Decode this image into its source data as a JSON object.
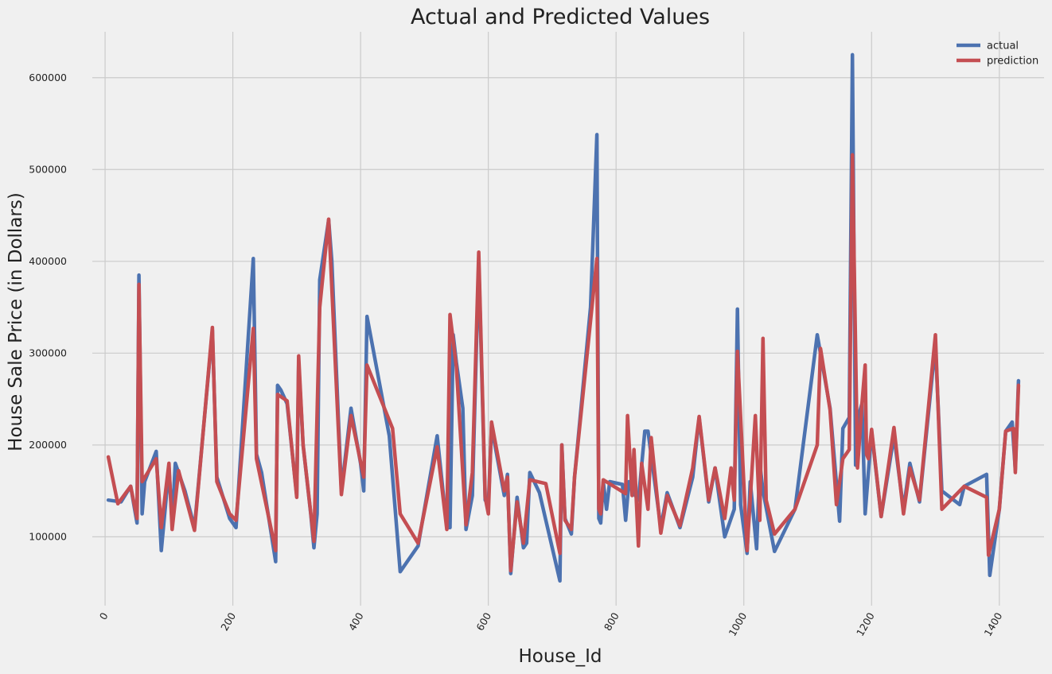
{
  "chart_data": {
    "type": "line",
    "title": "Actual and Predicted Values",
    "xlabel": "House_Id",
    "ylabel": "House Sale Price (in Dollars)",
    "xlim": [
      -20,
      1470
    ],
    "ylim": [
      25000,
      650000
    ],
    "xticks": [
      0,
      200,
      400,
      600,
      800,
      1000,
      1200,
      1400
    ],
    "yticks": [
      100000,
      200000,
      300000,
      400000,
      500000,
      600000
    ],
    "grid": true,
    "legend": "top-right",
    "series": [
      {
        "name": "actual",
        "color": "#4c72b0",
        "points": [
          [
            5,
            140000
          ],
          [
            15,
            139000
          ],
          [
            25,
            138000
          ],
          [
            40,
            155000
          ],
          [
            50,
            115000
          ],
          [
            53,
            385000
          ],
          [
            58,
            125000
          ],
          [
            62,
            160000
          ],
          [
            80,
            193000
          ],
          [
            88,
            85000
          ],
          [
            100,
            175000
          ],
          [
            105,
            115000
          ],
          [
            110,
            180000
          ],
          [
            125,
            150000
          ],
          [
            140,
            110000
          ],
          [
            168,
            325000
          ],
          [
            175,
            165000
          ],
          [
            195,
            120000
          ],
          [
            205,
            110000
          ],
          [
            232,
            403000
          ],
          [
            237,
            190000
          ],
          [
            245,
            170000
          ],
          [
            267,
            73000
          ],
          [
            270,
            265000
          ],
          [
            275,
            260000
          ],
          [
            285,
            245000
          ],
          [
            300,
            145000
          ],
          [
            303,
            290000
          ],
          [
            310,
            200000
          ],
          [
            322,
            125000
          ],
          [
            327,
            88000
          ],
          [
            332,
            125000
          ],
          [
            336,
            380000
          ],
          [
            350,
            445000
          ],
          [
            355,
            400000
          ],
          [
            370,
            150000
          ],
          [
            385,
            240000
          ],
          [
            400,
            180000
          ],
          [
            405,
            150000
          ],
          [
            410,
            340000
          ],
          [
            445,
            210000
          ],
          [
            462,
            62000
          ],
          [
            490,
            90000
          ],
          [
            520,
            210000
          ],
          [
            535,
            110000
          ],
          [
            540,
            110000
          ],
          [
            545,
            320000
          ],
          [
            550,
            290000
          ],
          [
            560,
            240000
          ],
          [
            565,
            108000
          ],
          [
            575,
            145000
          ],
          [
            585,
            400000
          ],
          [
            595,
            140000
          ],
          [
            600,
            135000
          ],
          [
            605,
            220000
          ],
          [
            625,
            145000
          ],
          [
            630,
            168000
          ],
          [
            635,
            60000
          ],
          [
            645,
            143000
          ],
          [
            655,
            88000
          ],
          [
            660,
            93000
          ],
          [
            665,
            170000
          ],
          [
            680,
            148000
          ],
          [
            712,
            52000
          ],
          [
            715,
            200000
          ],
          [
            720,
            120000
          ],
          [
            730,
            103000
          ],
          [
            735,
            165000
          ],
          [
            760,
            350000
          ],
          [
            770,
            538000
          ],
          [
            773,
            120000
          ],
          [
            776,
            115000
          ],
          [
            780,
            160000
          ],
          [
            785,
            130000
          ],
          [
            790,
            160000
          ],
          [
            810,
            157000
          ],
          [
            815,
            118000
          ],
          [
            820,
            160000
          ],
          [
            825,
            150000
          ],
          [
            835,
            140000
          ],
          [
            845,
            215000
          ],
          [
            850,
            215000
          ],
          [
            870,
            110000
          ],
          [
            880,
            148000
          ],
          [
            900,
            110000
          ],
          [
            920,
            165000
          ],
          [
            930,
            230000
          ],
          [
            945,
            138000
          ],
          [
            955,
            175000
          ],
          [
            970,
            100000
          ],
          [
            985,
            130000
          ],
          [
            990,
            348000
          ],
          [
            995,
            135000
          ],
          [
            1005,
            82000
          ],
          [
            1010,
            160000
          ],
          [
            1020,
            87000
          ],
          [
            1025,
            180000
          ],
          [
            1030,
            150000
          ],
          [
            1048,
            84000
          ],
          [
            1080,
            130000
          ],
          [
            1115,
            320000
          ],
          [
            1135,
            240000
          ],
          [
            1150,
            117000
          ],
          [
            1155,
            218000
          ],
          [
            1165,
            230000
          ],
          [
            1170,
            625000
          ],
          [
            1175,
            178000
          ],
          [
            1180,
            233000
          ],
          [
            1185,
            245000
          ],
          [
            1190,
            125000
          ],
          [
            1200,
            215000
          ],
          [
            1215,
            122000
          ],
          [
            1235,
            210000
          ],
          [
            1250,
            130000
          ],
          [
            1260,
            180000
          ],
          [
            1275,
            138000
          ],
          [
            1300,
            310000
          ],
          [
            1310,
            150000
          ],
          [
            1338,
            135000
          ],
          [
            1345,
            155000
          ],
          [
            1380,
            168000
          ],
          [
            1385,
            58000
          ],
          [
            1400,
            130000
          ],
          [
            1410,
            215000
          ],
          [
            1420,
            225000
          ],
          [
            1425,
            173000
          ],
          [
            1430,
            270000
          ]
        ]
      },
      {
        "name": "prediction",
        "color": "#c44e52",
        "points": [
          [
            5,
            187000
          ],
          [
            20,
            136000
          ],
          [
            40,
            155000
          ],
          [
            50,
            120000
          ],
          [
            53,
            375000
          ],
          [
            58,
            160000
          ],
          [
            80,
            185000
          ],
          [
            88,
            110000
          ],
          [
            100,
            180000
          ],
          [
            105,
            108000
          ],
          [
            115,
            172000
          ],
          [
            140,
            107000
          ],
          [
            168,
            328000
          ],
          [
            175,
            160000
          ],
          [
            195,
            125000
          ],
          [
            205,
            118000
          ],
          [
            232,
            327000
          ],
          [
            237,
            185000
          ],
          [
            267,
            85000
          ],
          [
            270,
            255000
          ],
          [
            285,
            248000
          ],
          [
            300,
            143000
          ],
          [
            303,
            297000
          ],
          [
            310,
            200000
          ],
          [
            327,
            95000
          ],
          [
            336,
            350000
          ],
          [
            350,
            446000
          ],
          [
            370,
            146000
          ],
          [
            385,
            232000
          ],
          [
            405,
            165000
          ],
          [
            410,
            287000
          ],
          [
            450,
            218000
          ],
          [
            462,
            125000
          ],
          [
            490,
            93000
          ],
          [
            520,
            198000
          ],
          [
            535,
            108000
          ],
          [
            540,
            342000
          ],
          [
            550,
            285000
          ],
          [
            565,
            113000
          ],
          [
            575,
            170000
          ],
          [
            585,
            410000
          ],
          [
            595,
            143000
          ],
          [
            600,
            125000
          ],
          [
            605,
            225000
          ],
          [
            625,
            150000
          ],
          [
            630,
            165000
          ],
          [
            635,
            63000
          ],
          [
            645,
            138000
          ],
          [
            655,
            93000
          ],
          [
            665,
            162000
          ],
          [
            690,
            158000
          ],
          [
            712,
            82000
          ],
          [
            715,
            200000
          ],
          [
            720,
            118000
          ],
          [
            730,
            108000
          ],
          [
            735,
            165000
          ],
          [
            770,
            403000
          ],
          [
            773,
            130000
          ],
          [
            776,
            125000
          ],
          [
            780,
            162000
          ],
          [
            815,
            147000
          ],
          [
            818,
            232000
          ],
          [
            825,
            145000
          ],
          [
            828,
            195000
          ],
          [
            835,
            90000
          ],
          [
            840,
            180000
          ],
          [
            850,
            130000
          ],
          [
            855,
            208000
          ],
          [
            870,
            104000
          ],
          [
            880,
            145000
          ],
          [
            900,
            112000
          ],
          [
            920,
            175000
          ],
          [
            930,
            231000
          ],
          [
            945,
            140000
          ],
          [
            955,
            175000
          ],
          [
            970,
            120000
          ],
          [
            980,
            175000
          ],
          [
            985,
            140000
          ],
          [
            990,
            302000
          ],
          [
            1005,
            85000
          ],
          [
            1018,
            232000
          ],
          [
            1025,
            118000
          ],
          [
            1030,
            316000
          ],
          [
            1035,
            140000
          ],
          [
            1048,
            103000
          ],
          [
            1080,
            130000
          ],
          [
            1115,
            200000
          ],
          [
            1120,
            305000
          ],
          [
            1135,
            238000
          ],
          [
            1145,
            135000
          ],
          [
            1155,
            185000
          ],
          [
            1165,
            195000
          ],
          [
            1170,
            516000
          ],
          [
            1178,
            175000
          ],
          [
            1185,
            245000
          ],
          [
            1190,
            287000
          ],
          [
            1192,
            190000
          ],
          [
            1195,
            185000
          ],
          [
            1200,
            217000
          ],
          [
            1215,
            122000
          ],
          [
            1235,
            219000
          ],
          [
            1250,
            125000
          ],
          [
            1260,
            175000
          ],
          [
            1275,
            140000
          ],
          [
            1300,
            320000
          ],
          [
            1310,
            130000
          ],
          [
            1345,
            155000
          ],
          [
            1380,
            143000
          ],
          [
            1383,
            80000
          ],
          [
            1400,
            130000
          ],
          [
            1410,
            215000
          ],
          [
            1422,
            218000
          ],
          [
            1425,
            170000
          ],
          [
            1430,
            265000
          ]
        ]
      }
    ]
  }
}
